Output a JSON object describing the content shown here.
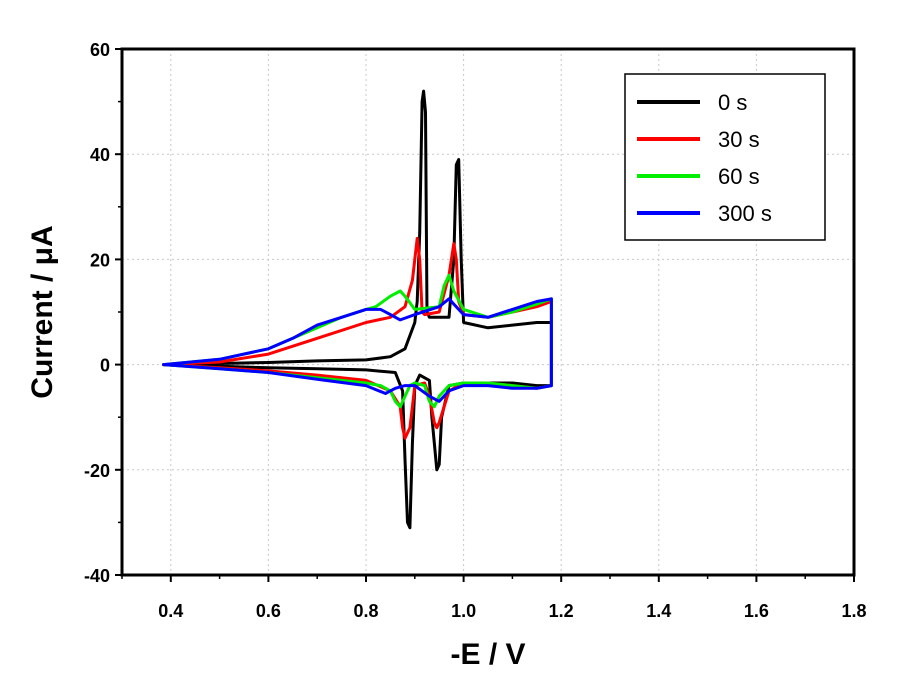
{
  "chart_data": {
    "type": "line",
    "title": "",
    "xlabel": "-E / V",
    "ylabel": "Current / μA",
    "xlim": [
      0.3,
      1.8
    ],
    "ylim": [
      -40,
      60
    ],
    "xticks": [
      0.4,
      0.6,
      0.8,
      1.0,
      1.2,
      1.4,
      1.6,
      1.8
    ],
    "xtick_labels": [
      "0.4",
      "0.6",
      "0.8",
      "1.0",
      "1.2",
      "1.4",
      "1.6",
      "1.8"
    ],
    "yticks": [
      -40,
      -20,
      0,
      20,
      40,
      60
    ],
    "ytick_labels": [
      "-40",
      "-20",
      "0",
      "20",
      "40",
      "60"
    ],
    "grid": true,
    "legend_position": "top-right",
    "series": [
      {
        "name": "0 s",
        "color": "#000000",
        "x": [
          0.385,
          0.5,
          0.6,
          0.7,
          0.8,
          0.85,
          0.88,
          0.9,
          0.905,
          0.91,
          0.915,
          0.918,
          0.922,
          0.925,
          0.93,
          0.97,
          0.98,
          0.985,
          0.99,
          0.995,
          1.0,
          1.05,
          1.1,
          1.15,
          1.18,
          1.18,
          1.15,
          1.1,
          1.05,
          1.0,
          0.97,
          0.955,
          0.95,
          0.945,
          0.935,
          0.93,
          0.91,
          0.9,
          0.895,
          0.89,
          0.885,
          0.88,
          0.875,
          0.86,
          0.8,
          0.7,
          0.6,
          0.5,
          0.385
        ],
        "y": [
          0,
          0.2,
          0.4,
          0.7,
          0.9,
          1.5,
          3,
          8,
          12,
          25,
          50,
          52,
          48,
          10,
          9,
          9,
          20,
          38,
          39,
          20,
          8,
          7,
          7.5,
          8,
          8,
          -4,
          -4,
          -3.5,
          -3.5,
          -3.5,
          -4,
          -10,
          -19,
          -20,
          -10,
          -3,
          -2,
          -4,
          -15,
          -31,
          -30,
          -18,
          -5,
          -1.5,
          -1,
          -0.8,
          -0.6,
          -0.3,
          0
        ]
      },
      {
        "name": "30 s",
        "color": "#ff0000",
        "x": [
          0.385,
          0.5,
          0.6,
          0.7,
          0.8,
          0.85,
          0.88,
          0.895,
          0.905,
          0.91,
          0.915,
          0.92,
          0.95,
          0.97,
          0.98,
          0.985,
          0.99,
          1.0,
          1.05,
          1.1,
          1.15,
          1.18,
          1.18,
          1.15,
          1.1,
          1.05,
          1.0,
          0.97,
          0.95,
          0.945,
          0.94,
          0.93,
          0.92,
          0.9,
          0.895,
          0.89,
          0.88,
          0.875,
          0.87,
          0.85,
          0.8,
          0.7,
          0.6,
          0.5,
          0.385
        ],
        "y": [
          0,
          0.5,
          2,
          5,
          8,
          9,
          11,
          16,
          24,
          20,
          10,
          9.5,
          10,
          17,
          23,
          20,
          12,
          9.5,
          9,
          10,
          11,
          12,
          -4,
          -4.5,
          -4,
          -3.5,
          -3.5,
          -5,
          -11,
          -12,
          -11,
          -6,
          -3.5,
          -4,
          -8,
          -12,
          -14,
          -12,
          -8,
          -5,
          -3,
          -2,
          -1.2,
          -0.6,
          0
        ]
      },
      {
        "name": "60 s",
        "color": "#00ee00",
        "x": [
          0.385,
          0.5,
          0.6,
          0.65,
          0.7,
          0.75,
          0.8,
          0.82,
          0.85,
          0.87,
          0.88,
          0.9,
          0.95,
          0.96,
          0.97,
          0.98,
          1.0,
          1.05,
          1.1,
          1.15,
          1.18,
          1.18,
          1.15,
          1.1,
          1.05,
          1.0,
          0.97,
          0.95,
          0.94,
          0.93,
          0.92,
          0.9,
          0.89,
          0.88,
          0.87,
          0.86,
          0.85,
          0.83,
          0.8,
          0.7,
          0.6,
          0.5,
          0.385
        ],
        "y": [
          0,
          1,
          3,
          5,
          7,
          9,
          10.5,
          11,
          13,
          14,
          13,
          10.5,
          11,
          15,
          17,
          14,
          10.5,
          9,
          10,
          11.5,
          12.5,
          -4,
          -4.5,
          -4,
          -3.5,
          -3.5,
          -4,
          -6,
          -8,
          -7,
          -4,
          -3.5,
          -4,
          -6,
          -8,
          -7,
          -5,
          -4,
          -3.5,
          -2.5,
          -1.5,
          -0.8,
          0
        ]
      },
      {
        "name": "300 s",
        "color": "#0000ff",
        "x": [
          0.385,
          0.5,
          0.6,
          0.65,
          0.7,
          0.75,
          0.8,
          0.83,
          0.85,
          0.87,
          0.9,
          0.95,
          0.97,
          0.98,
          1.0,
          1.05,
          1.1,
          1.15,
          1.18,
          1.18,
          1.15,
          1.1,
          1.05,
          1.0,
          0.97,
          0.95,
          0.93,
          0.9,
          0.88,
          0.86,
          0.84,
          0.8,
          0.7,
          0.6,
          0.5,
          0.385
        ],
        "y": [
          0,
          1,
          3,
          5,
          7.5,
          9,
          10.5,
          10.5,
          9.5,
          8.5,
          9.5,
          11,
          12.5,
          11.5,
          9.5,
          9,
          10.5,
          12,
          12.5,
          -4,
          -4.5,
          -4.5,
          -4,
          -4,
          -5,
          -7,
          -6,
          -4,
          -4,
          -4.5,
          -5.5,
          -4,
          -2.8,
          -1.5,
          -0.8,
          0
        ]
      }
    ]
  }
}
